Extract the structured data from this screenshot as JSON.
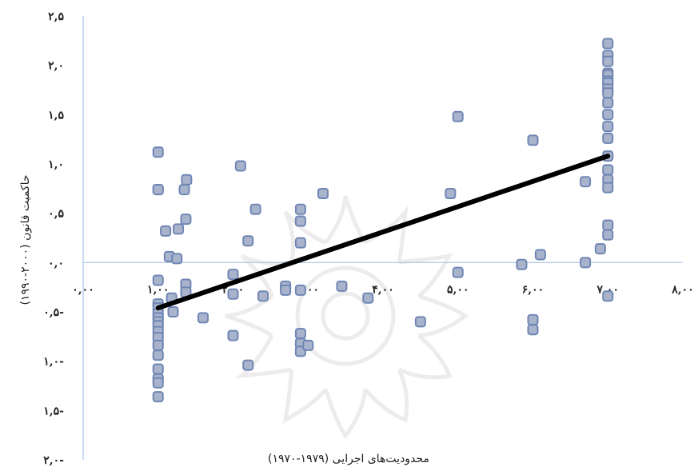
{
  "chart_data": {
    "type": "scatter",
    "xlabel": "محدودیت‌های اجرایی (۱۹۷۹-۱۹۷۰)",
    "ylabel": "حاکمیت قانون (۲۰۰۰-۱۹۹۰)",
    "xlim": [
      0,
      8
    ],
    "ylim": [
      -2.0,
      2.5
    ],
    "grid": false,
    "x_ticks": [
      {
        "value": 0,
        "label": "۰,۰۰"
      },
      {
        "value": 1,
        "label": "۱,۰۰"
      },
      {
        "value": 2,
        "label": "۲,۰۰"
      },
      {
        "value": 3,
        "label": "۳,۰۰"
      },
      {
        "value": 4,
        "label": "۴,۰۰"
      },
      {
        "value": 5,
        "label": "۵,۰۰"
      },
      {
        "value": 6,
        "label": "۶,۰۰"
      },
      {
        "value": 7,
        "label": "۷,۰۰"
      },
      {
        "value": 8,
        "label": "۸,۰۰"
      }
    ],
    "y_ticks": [
      {
        "value": 2.5,
        "label": "۲,۵"
      },
      {
        "value": 2.0,
        "label": "۲,۰"
      },
      {
        "value": 1.5,
        "label": "۱,۵"
      },
      {
        "value": 1.0,
        "label": "۱,۰"
      },
      {
        "value": 0.5,
        "label": "۰,۵"
      },
      {
        "value": 0.0,
        "label": "۰,۰"
      },
      {
        "value": -0.5,
        "label": "۰,۵-"
      },
      {
        "value": -1.0,
        "label": "۱,۰-"
      },
      {
        "value": -1.5,
        "label": "۱,۵-"
      },
      {
        "value": -2.0,
        "label": "۲,۰-"
      }
    ],
    "series": [
      {
        "points": [
          [
            1.0,
            1.12
          ],
          [
            1.0,
            0.74
          ],
          [
            1.0,
            0.74
          ],
          [
            1.0,
            -0.18
          ],
          [
            1.0,
            -0.42
          ],
          [
            1.0,
            -0.46
          ],
          [
            1.0,
            -0.52
          ],
          [
            1.0,
            -0.56
          ],
          [
            1.0,
            -0.6
          ],
          [
            1.0,
            -0.64
          ],
          [
            1.0,
            -0.7
          ],
          [
            1.0,
            -0.76
          ],
          [
            1.0,
            -0.84
          ],
          [
            1.0,
            -0.94
          ],
          [
            1.0,
            -1.08
          ],
          [
            1.0,
            -1.18
          ],
          [
            1.0,
            -1.22
          ],
          [
            1.0,
            -1.36
          ],
          [
            1.1,
            0.32
          ],
          [
            1.15,
            0.06
          ],
          [
            1.18,
            -0.36
          ],
          [
            1.2,
            -0.5
          ],
          [
            1.25,
            0.04
          ],
          [
            1.27,
            0.34
          ],
          [
            1.35,
            0.74
          ],
          [
            1.38,
            0.84
          ],
          [
            1.37,
            0.44
          ],
          [
            1.37,
            -0.22
          ],
          [
            1.37,
            -0.3
          ],
          [
            1.6,
            -0.56
          ],
          [
            2.0,
            -0.12
          ],
          [
            2.0,
            -0.32
          ],
          [
            2.0,
            -0.74
          ],
          [
            2.1,
            0.98
          ],
          [
            2.2,
            0.22
          ],
          [
            2.2,
            -1.04
          ],
          [
            2.3,
            0.54
          ],
          [
            2.4,
            -0.34
          ],
          [
            2.7,
            -0.24
          ],
          [
            2.7,
            -0.28
          ],
          [
            2.9,
            0.54
          ],
          [
            2.9,
            0.42
          ],
          [
            2.9,
            0.2
          ],
          [
            2.9,
            -0.28
          ],
          [
            2.9,
            -0.72
          ],
          [
            2.9,
            -0.82
          ],
          [
            2.9,
            -0.9
          ],
          [
            3.0,
            -0.84
          ],
          [
            3.2,
            0.7
          ],
          [
            3.45,
            -0.24
          ],
          [
            3.8,
            -0.36
          ],
          [
            4.5,
            -0.6
          ],
          [
            4.9,
            0.7
          ],
          [
            5.0,
            1.48
          ],
          [
            5.0,
            -0.1
          ],
          [
            5.85,
            -0.02
          ],
          [
            6.0,
            1.24
          ],
          [
            6.0,
            -0.58
          ],
          [
            6.0,
            -0.68
          ],
          [
            6.1,
            0.08
          ],
          [
            6.7,
            0.82
          ],
          [
            6.7,
            0.0
          ],
          [
            6.9,
            0.14
          ],
          [
            7.0,
            2.22
          ],
          [
            7.0,
            2.1
          ],
          [
            7.0,
            2.04
          ],
          [
            7.0,
            1.92
          ],
          [
            7.0,
            1.9
          ],
          [
            7.0,
            1.84
          ],
          [
            7.0,
            1.82
          ],
          [
            7.0,
            1.76
          ],
          [
            7.0,
            1.72
          ],
          [
            7.0,
            1.62
          ],
          [
            7.0,
            1.5
          ],
          [
            7.0,
            1.38
          ],
          [
            7.0,
            1.26
          ],
          [
            7.0,
            1.08
          ],
          [
            7.0,
            0.94
          ],
          [
            7.0,
            0.84
          ],
          [
            7.0,
            0.76
          ],
          [
            7.0,
            0.38
          ],
          [
            7.0,
            0.28
          ],
          [
            7.0,
            -0.34
          ]
        ]
      }
    ],
    "trendline": {
      "x": [
        1.0,
        7.0
      ],
      "y": [
        -0.46,
        1.08
      ]
    }
  }
}
